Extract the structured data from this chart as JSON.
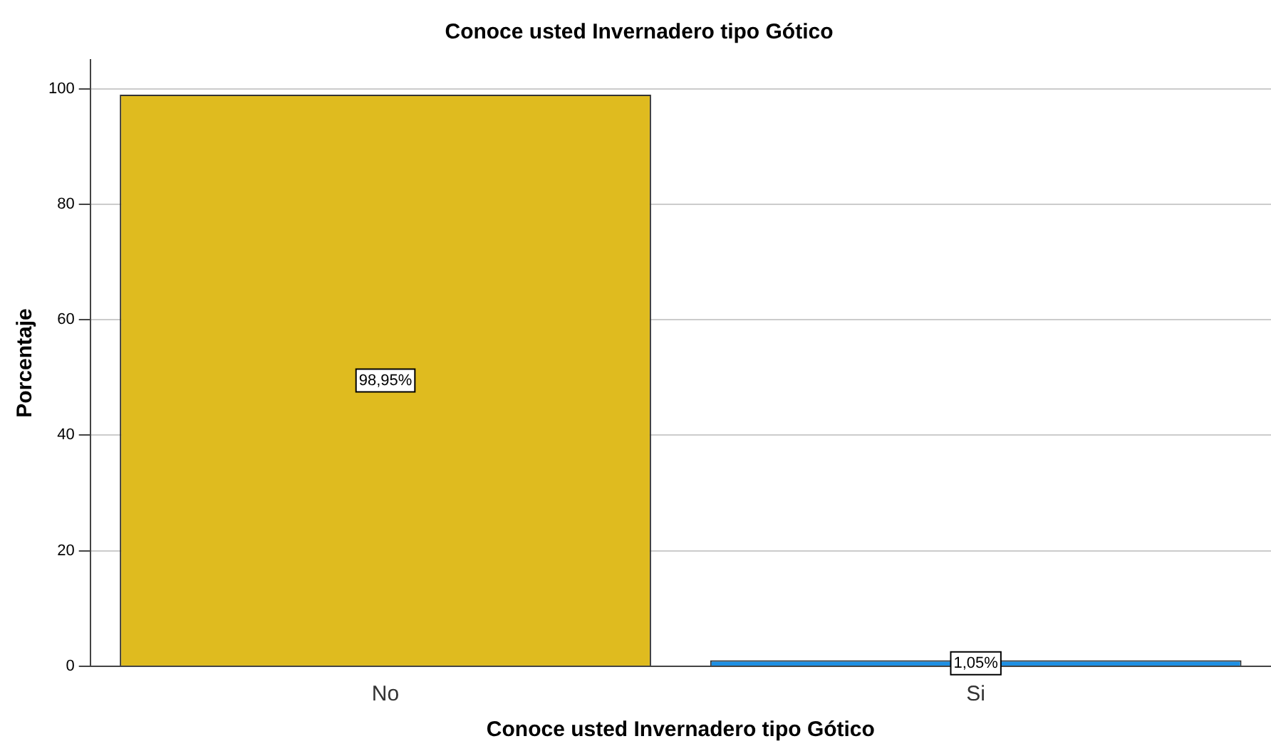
{
  "chart_data": {
    "type": "bar",
    "title": "Conoce usted Invernadero tipo Gótico",
    "xlabel": "Conoce usted Invernadero tipo Gótico",
    "ylabel": "Porcentaje",
    "categories": [
      "No",
      "Si"
    ],
    "values": [
      98.95,
      1.05
    ],
    "colors": [
      "#dfbb1f",
      "#1e8fe3"
    ],
    "value_labels": [
      "98,95%",
      "1,05%"
    ],
    "ylim": [
      0,
      105
    ],
    "yticks": [
      0,
      20,
      40,
      60,
      80,
      100
    ],
    "grid": "y",
    "legend": false
  }
}
